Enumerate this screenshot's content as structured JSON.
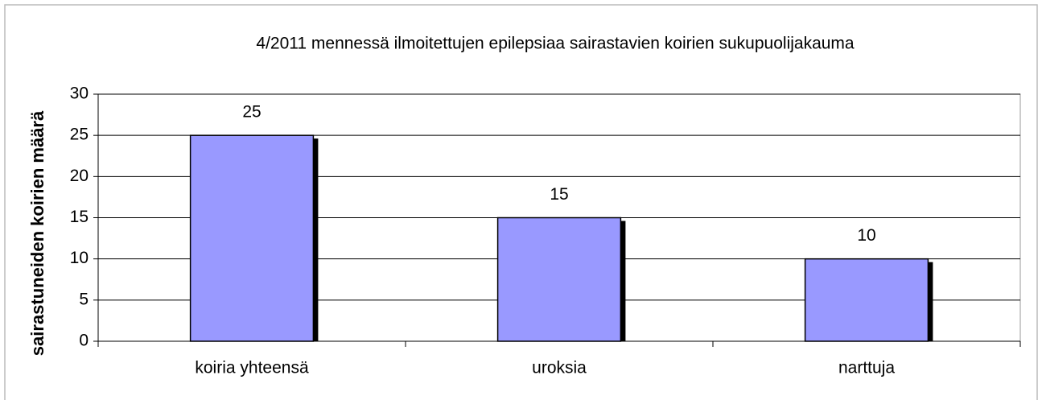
{
  "chart_data": {
    "type": "bar",
    "title": "4/2011 mennessä ilmoitettujen epilepsiaa sairastavien koirien sukupuolijakauma",
    "y_label": "sairastuneiden koirien määrä",
    "categories": [
      "koiria yhteensä",
      "uroksia",
      "narttuja"
    ],
    "values": [
      25,
      15,
      10
    ],
    "color": "#9999ff",
    "ylim": [
      0,
      30
    ],
    "yticks": [
      0,
      5,
      10,
      15,
      20,
      25,
      30
    ],
    "grid": true
  }
}
